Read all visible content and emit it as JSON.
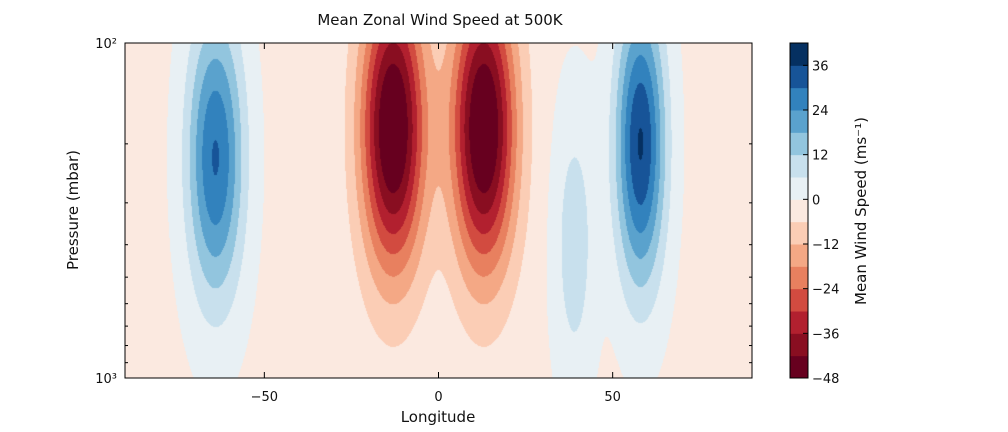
{
  "chart_data": {
    "type": "heatmap",
    "subtype": "filled-contour",
    "title": "Mean Zonal Wind Speed at 500K",
    "xlabel": "Longitude",
    "ylabel": "Pressure (mbar)",
    "xlim": [
      -90,
      90
    ],
    "ylim": [
      1000,
      100
    ],
    "y_scale": "log",
    "grid": false,
    "x_ticks": [
      -50,
      0,
      50
    ],
    "x_tick_labels": [
      "−50",
      "0",
      "50"
    ],
    "y_ticks": [
      100,
      1000
    ],
    "y_tick_labels": [
      "10²",
      "10³"
    ],
    "colormap": "RdBu",
    "colorbar": {
      "label": "Mean Wind Speed (ms⁻¹)",
      "levels": [
        -48,
        -42,
        -36,
        -30,
        -24,
        -18,
        -12,
        -6,
        0,
        6,
        12,
        18,
        24,
        30,
        36,
        42
      ],
      "colors": [
        "#67001f",
        "#890e21",
        "#b2202f",
        "#d24b40",
        "#e8805f",
        "#f4a885",
        "#fbcdb5",
        "#fbe9e0",
        "#e8f0f4",
        "#c8e0ed",
        "#92c5de",
        "#5aa2cd",
        "#3282bd",
        "#175498",
        "#053061"
      ],
      "ticks": [
        -48,
        -36,
        -24,
        -12,
        0,
        12,
        24,
        36
      ],
      "tick_labels": [
        "−48",
        "−36",
        "−24",
        "−12",
        "0",
        "12",
        "24",
        "36"
      ]
    },
    "features": [
      {
        "type": "jet",
        "lon": -64,
        "p_core": 220,
        "width_deg": 8,
        "peak": 32
      },
      {
        "type": "jet",
        "lon": -13,
        "p_core": 180,
        "width_deg": 9,
        "peak": -50
      },
      {
        "type": "jet",
        "lon": 13,
        "p_core": 180,
        "width_deg": 9,
        "peak": -50
      },
      {
        "type": "jet",
        "lon": 58,
        "p_core": 200,
        "width_deg": 7,
        "peak": 38
      },
      {
        "type": "lobe",
        "lon": 39,
        "p_core": 400,
        "width_deg": 6,
        "peak": 11
      },
      {
        "type": "background",
        "peak": -1.5
      }
    ]
  }
}
